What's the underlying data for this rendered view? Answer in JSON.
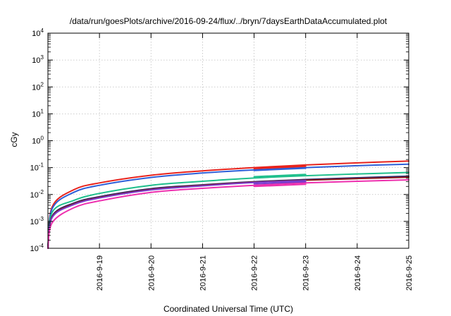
{
  "chart_data": {
    "type": "line",
    "title": "/data/run/goesPlots/archive/2016-09-24/flux/../bryn/7daysEarthDataAccumulated.plot",
    "xlabel": "Coordinated Universal Time (UTC)",
    "ylabel": "cGy",
    "y_scale": "log",
    "ylim": [
      0.0001,
      10000
    ],
    "xlim": [
      "2016-09-18 00:00",
      "2016-09-25 00:00"
    ],
    "x_ticks": [
      "2016-9-19",
      "2016-9-20",
      "2016-9-21",
      "2016-9-22",
      "2016-9-23",
      "2016-9-24",
      "2016-9-25"
    ],
    "y_ticks": [
      {
        "base": "10",
        "exp": "-4"
      },
      {
        "base": "10",
        "exp": "-3"
      },
      {
        "base": "10",
        "exp": "-2"
      },
      {
        "base": "10",
        "exp": "-1"
      },
      {
        "base": "10",
        "exp": "0"
      },
      {
        "base": "10",
        "exp": "1"
      },
      {
        "base": "10",
        "exp": "2"
      },
      {
        "base": "10",
        "exp": "3"
      },
      {
        "base": "10",
        "exp": "4"
      }
    ],
    "grid": true,
    "series": [
      {
        "color": "#e8231d",
        "x": [
          "2016-09-18 02:00",
          "2016-09-18 12:00",
          "2016-09-19 00:00",
          "2016-09-20 00:00",
          "2016-09-21 00:00",
          "2016-09-22 00:00",
          "2016-09-23 00:00",
          "2016-09-24 00:00",
          "2016-09-25 00:00"
        ],
        "values": [
          0.0035,
          0.015,
          0.027,
          0.052,
          0.076,
          0.1,
          0.125,
          0.15,
          0.175
        ]
      },
      {
        "color": "#2e5fd8",
        "x": [
          "2016-09-18 02:00",
          "2016-09-18 12:00",
          "2016-09-19 00:00",
          "2016-09-20 00:00",
          "2016-09-21 00:00",
          "2016-09-22 00:00",
          "2016-09-23 00:00",
          "2016-09-24 00:00",
          "2016-09-25 00:00"
        ],
        "values": [
          0.003,
          0.012,
          0.022,
          0.043,
          0.063,
          0.082,
          0.1,
          0.118,
          0.135
        ]
      },
      {
        "color": "#1ebf8c",
        "x": [
          "2016-09-18 02:00",
          "2016-09-18 12:00",
          "2016-09-19 00:00",
          "2016-09-20 00:00",
          "2016-09-21 00:00",
          "2016-09-22 00:00",
          "2016-09-23 00:00",
          "2016-09-24 00:00",
          "2016-09-25 00:00"
        ],
        "values": [
          0.0022,
          0.006,
          0.011,
          0.022,
          0.031,
          0.041,
          0.05,
          0.058,
          0.066
        ]
      },
      {
        "color": "#2a2a72",
        "x": [
          "2016-09-18 02:00",
          "2016-09-18 12:00",
          "2016-09-19 00:00",
          "2016-09-20 00:00",
          "2016-09-21 00:00",
          "2016-09-22 00:00",
          "2016-09-23 00:00",
          "2016-09-24 00:00",
          "2016-09-25 00:00"
        ],
        "values": [
          0.0016,
          0.0048,
          0.0083,
          0.0165,
          0.023,
          0.03,
          0.036,
          0.042,
          0.048
        ]
      },
      {
        "color": "#8b1a1a",
        "x": [
          "2016-09-18 02:00",
          "2016-09-18 12:00",
          "2016-09-19 00:00",
          "2016-09-20 00:00",
          "2016-09-21 00:00",
          "2016-09-22 00:00",
          "2016-09-23 00:00",
          "2016-09-24 00:00",
          "2016-09-25 00:00"
        ],
        "values": [
          0.0015,
          0.0045,
          0.0078,
          0.0155,
          0.022,
          0.029,
          0.034,
          0.039,
          0.044
        ]
      },
      {
        "color": "#7a3ccc",
        "x": [
          "2016-09-18 02:00",
          "2016-09-18 12:00",
          "2016-09-19 00:00",
          "2016-09-20 00:00",
          "2016-09-21 00:00",
          "2016-09-22 00:00",
          "2016-09-23 00:00"
        ],
        "values": [
          0.0014,
          0.0042,
          0.0074,
          0.0148,
          0.021,
          0.028,
          0.033
        ]
      },
      {
        "color": "#ee2fae",
        "x": [
          "2016-09-18 02:00",
          "2016-09-18 12:00",
          "2016-09-19 00:00",
          "2016-09-20 00:00",
          "2016-09-21 00:00",
          "2016-09-22 00:00",
          "2016-09-23 00:00",
          "2016-09-24 00:00",
          "2016-09-25 00:00"
        ],
        "values": [
          0.0009,
          0.0032,
          0.0058,
          0.012,
          0.017,
          0.022,
          0.027,
          0.031,
          0.035
        ]
      },
      {
        "color": "#e8231d",
        "x": [
          "2016-09-22 00:00",
          "2016-09-23 00:00"
        ],
        "values": [
          0.092,
          0.112
        ]
      },
      {
        "color": "#2e5fd8",
        "x": [
          "2016-09-22 00:00",
          "2016-09-23 00:00"
        ],
        "values": [
          0.078,
          0.095
        ]
      },
      {
        "color": "#1ebf8c",
        "x": [
          "2016-09-22 00:00",
          "2016-09-23 00:00"
        ],
        "values": [
          0.046,
          0.056
        ]
      },
      {
        "color": "#ee2fae",
        "x": [
          "2016-09-22 00:00",
          "2016-09-23 00:00"
        ],
        "values": [
          0.02,
          0.024
        ]
      },
      {
        "color": "#7a3ccc",
        "x": [
          "2016-09-22 00:00",
          "2016-09-23 00:00"
        ],
        "values": [
          0.025,
          0.03
        ]
      }
    ]
  }
}
